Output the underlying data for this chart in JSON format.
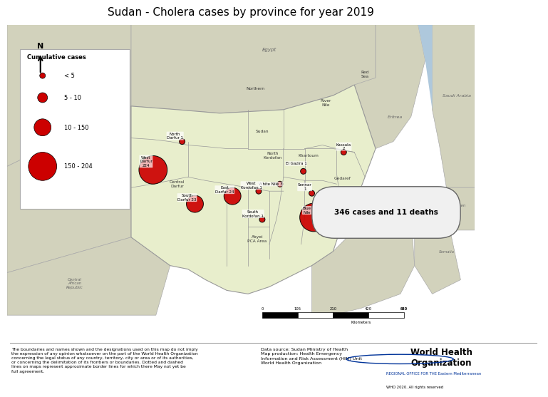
{
  "title": "Sudan - Cholera cases by province for year 2019",
  "title_fontsize": 11,
  "bg_color": "#c5d5e5",
  "sudan_fill": "#e8eecc",
  "sudan_border": "#999999",
  "neighbor_fill": "#d2d2bc",
  "neighbor_border": "#aaaaaa",
  "sea_color": "#aec8dc",
  "bubble_color": "#cc0000",
  "bubble_border": "#000000",
  "ann_box_fill": "#f0f0f0",
  "ann_box_edge": "#666666",
  "cases_text": "346 cases and 11 deaths",
  "footer_left": "The boundaries and names shown and the designations used on this map do not imply\nthe expression of any opinion whatsoever on the part of the World Health Organization\nconcerning the legal status of any country, territory, city or area or of its authorities,\nor concerning the delimitation of its frontiers or boundaries. Dotted and dashed\nlines on maps represent approximate border lines for which there May not yet be\nfull agreement.",
  "footer_mid": "Data source: Sudan Ministry of Health\nMap production: Health Emergency\nInformation and Risk Assessment (HIM) Unit\nWorld Health Organization",
  "footer_right1": "World Health\nOrganization",
  "footer_right2": "REGIONAL OFFICE FOR THE Eastern Mediterranean",
  "footer_right3": "WHO 2020. All rights reserved"
}
